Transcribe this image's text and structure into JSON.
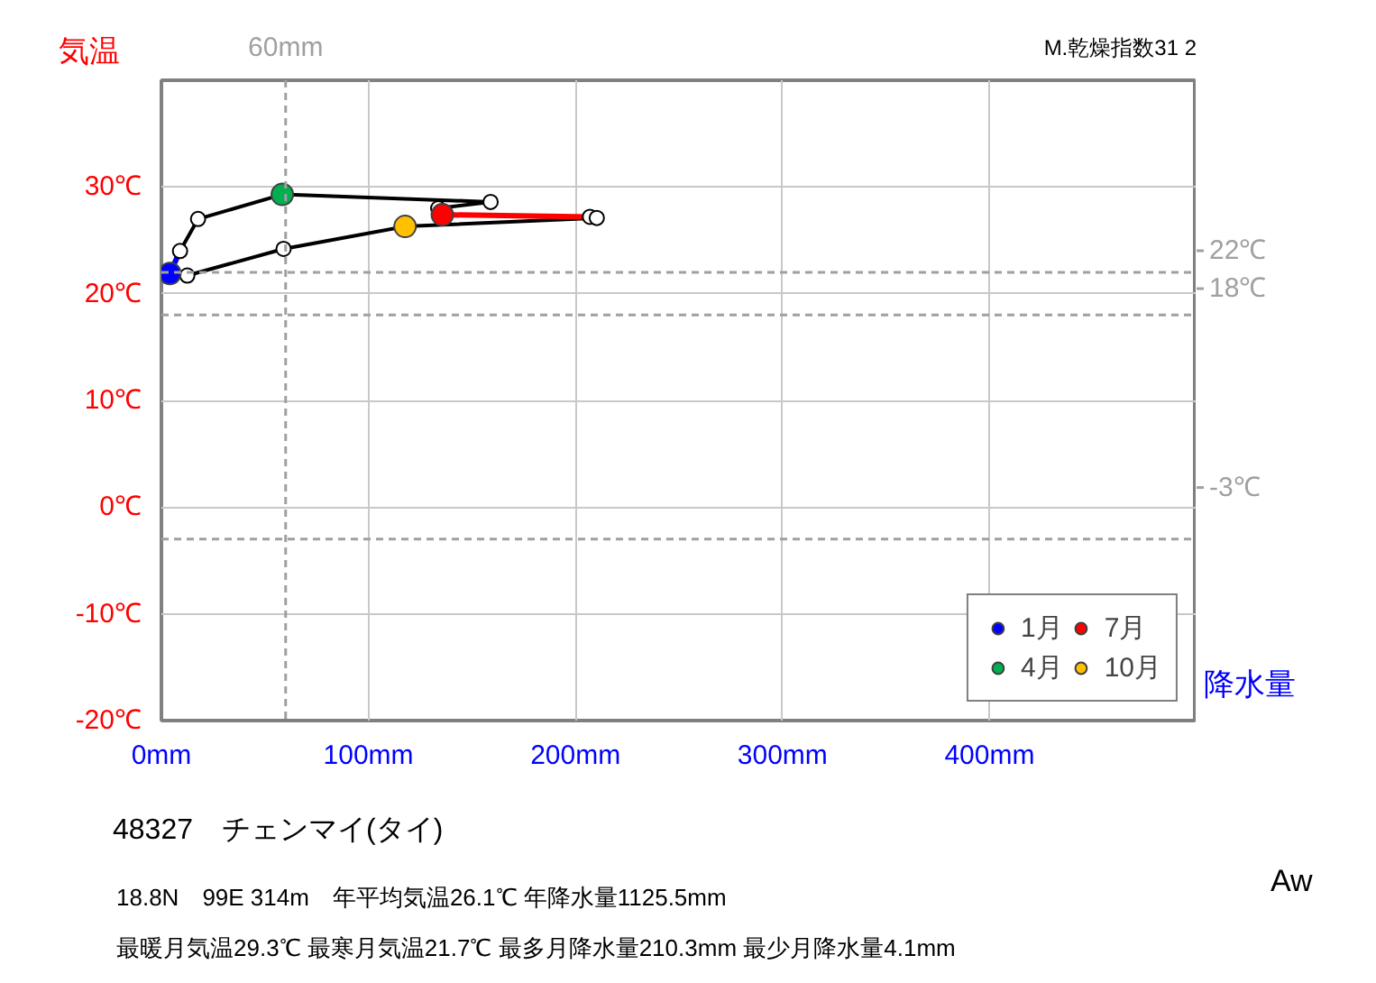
{
  "chart_data": {
    "type": "line",
    "title": "48327　チェンマイ(タイ)",
    "subtitle": "18.8N　99E 314m　年平均気温26.1℃ 年降水量1125.5mm\n最暖月気温29.3℃ 最寒月気温21.7℃ 最多月降水量210.3mm 最少月降水量4.1mm",
    "xlabel": "降水量",
    "ylabel": "気温",
    "annotations": [
      "M.乾燥指数31 2",
      "Aw"
    ],
    "xlim": [
      0,
      500
    ],
    "ylim": [
      -20,
      40
    ],
    "xticks": [
      {
        "value": 0,
        "label": "0mm"
      },
      {
        "value": 100,
        "label": "100mm"
      },
      {
        "value": 200,
        "label": "200mm"
      },
      {
        "value": 300,
        "label": "300mm"
      },
      {
        "value": 400,
        "label": "400mm"
      },
      {
        "value": 500,
        "label": null
      }
    ],
    "yticks": [
      {
        "value": -20,
        "label": "-20℃"
      },
      {
        "value": -10,
        "label": "-10℃"
      },
      {
        "value": 0,
        "label": "0℃"
      },
      {
        "value": 10,
        "label": "10℃"
      },
      {
        "value": 20,
        "label": "20℃"
      },
      {
        "value": 30,
        "label": "30℃"
      },
      {
        "value": 40,
        "label": null
      }
    ],
    "grid": true,
    "legend": "bottom right",
    "ref_lines": [
      {
        "axis": "y",
        "value": 22,
        "label": "22℃",
        "color": "#a0a0a0",
        "line_style": "dashed"
      },
      {
        "axis": "y",
        "value": 18,
        "label": "18℃",
        "color": "#a0a0a0",
        "line_style": "dashed"
      },
      {
        "axis": "y",
        "value": -3,
        "label": "-3℃",
        "color": "#a0a0a0",
        "line_style": "dashed"
      },
      {
        "axis": "x",
        "value": 60,
        "label": "60mm",
        "color": "#a0a0a0",
        "line_style": "dashed"
      }
    ],
    "series": [
      {
        "color": "#000000",
        "marker": "circle",
        "x": [
          4.1,
          9,
          17.7,
          58.4,
          159,
          133.7,
          135.7,
          207,
          210.3,
          117.7,
          59,
          12.5
        ],
        "values": [
          21.9,
          24.0,
          27.0,
          29.3,
          28.6,
          28.0,
          27.4,
          27.2,
          27.1,
          26.3,
          24.2,
          21.7
        ]
      },
      {
        "type": "line",
        "color": "#0000ff",
        "marker": "none",
        "x": [
          12.5,
          4.1,
          9
        ],
        "values": [
          21.7,
          21.9,
          24.0
        ]
      },
      {
        "type": "line",
        "color": "#ff0000",
        "marker": "none",
        "x": [
          135.7,
          207
        ],
        "values": [
          27.4,
          27.2
        ]
      },
      {
        "type": "scatter",
        "name": "1月",
        "color": "#0000ff",
        "x": [
          4.1
        ],
        "values": [
          21.9
        ]
      },
      {
        "type": "scatter",
        "name": "4月",
        "color": "#00b050",
        "x": [
          58.4
        ],
        "values": [
          29.3
        ]
      },
      {
        "type": "scatter",
        "name": "7月",
        "color": "#ff0000",
        "x": [
          135.7
        ],
        "values": [
          27.4
        ]
      },
      {
        "type": "scatter",
        "name": "10月",
        "color": "#ffc000",
        "x": [
          117.7
        ],
        "values": [
          26.3
        ]
      }
    ]
  }
}
